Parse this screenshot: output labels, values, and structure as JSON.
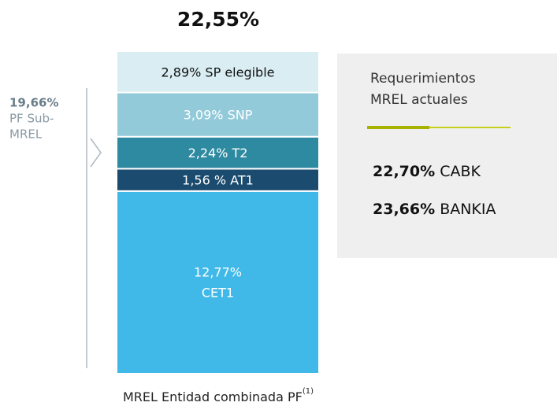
{
  "chart_data": {
    "type": "stacked_bar",
    "title": "22,55%",
    "xlabel": "MREL Entidad combinada PF",
    "xlabel_superscript": "(1)",
    "categories": [
      null
    ],
    "ylim": [
      0,
      22.55
    ],
    "series": [
      {
        "name": "CET1",
        "color": "#41b9e8",
        "label_color": "#ffffff",
        "values": [
          12.77
        ],
        "value_labels": [
          "12,77%"
        ]
      },
      {
        "name": "AT1",
        "color": "#1b4b6e",
        "label_color": "#ffffff",
        "values": [
          1.56
        ],
        "value_labels": [
          "1,56 %"
        ]
      },
      {
        "name": "T2",
        "color": "#2e8aa0",
        "label_color": "#ffffff",
        "values": [
          2.24
        ],
        "value_labels": [
          "2,24%"
        ]
      },
      {
        "name": "SNP",
        "color": "#93cad9",
        "label_color": "#ffffff",
        "values": [
          3.09
        ],
        "value_labels": [
          "3,09%"
        ]
      },
      {
        "name": "SP elegible",
        "color": "#d9edf3",
        "label_color": "#111111",
        "values": [
          2.89
        ],
        "value_labels": [
          "2,89%"
        ]
      }
    ],
    "side_annotation": {
      "value_label": "19,66%",
      "lines": [
        "PF Sub-",
        "MREL"
      ]
    },
    "panel": {
      "title_lines": [
        "Requerimientos",
        "MREL actuales"
      ],
      "entries": [
        {
          "value_label": "22,70%",
          "name": "CABK"
        },
        {
          "value_label": "23,66%",
          "name": "BANKIA"
        }
      ]
    }
  }
}
